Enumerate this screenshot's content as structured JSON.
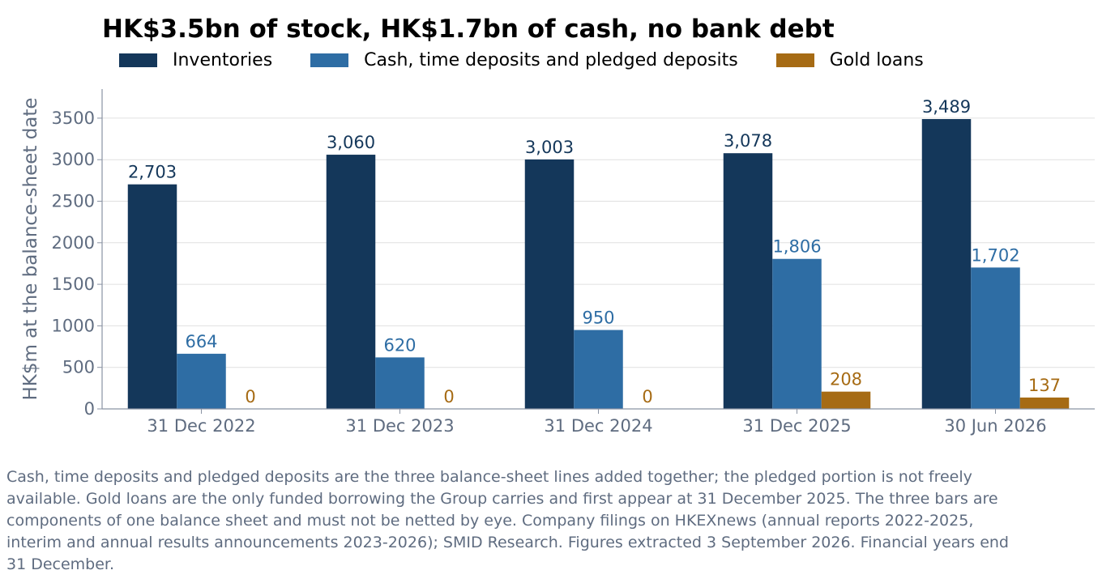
{
  "chart_data": {
    "type": "bar",
    "title": "HK$3.5bn of stock, HK$1.7bn of cash, no bank debt",
    "ylabel": "HK$m at the balance-sheet date",
    "xlabel": "",
    "ylim": [
      0,
      3850
    ],
    "yticks": [
      0,
      500,
      1000,
      1500,
      2000,
      2500,
      3000,
      3500
    ],
    "grid": "horizontal",
    "legend_position": "top",
    "categories": [
      "31 Dec 2022",
      "31 Dec 2023",
      "31 Dec 2024",
      "31 Dec 2025",
      "30 Jun 2026"
    ],
    "series": [
      {
        "name": "Inventories",
        "color": "#14375a",
        "values": [
          2703,
          3060,
          3003,
          3078,
          3489
        ],
        "labels": [
          "2,703",
          "3,060",
          "3,003",
          "3,078",
          "3,489"
        ]
      },
      {
        "name": "Cash, time deposits and pledged deposits",
        "color": "#2e6da4",
        "values": [
          664,
          620,
          950,
          1806,
          1702
        ],
        "labels": [
          "664",
          "620",
          "950",
          "1,806",
          "1,702"
        ]
      },
      {
        "name": "Gold loans",
        "color": "#a66b14",
        "values": [
          0,
          0,
          0,
          208,
          137
        ],
        "labels": [
          "0",
          "0",
          "0",
          "208",
          "137"
        ]
      }
    ]
  },
  "footnote": "Cash, time deposits and pledged deposits are the three balance-sheet lines added together; the pledged portion is not freely available. Gold loans are the only funded borrowing the Group carries and first appear at 31 December 2025. The three bars are components of one balance sheet and must not be netted by eye. Company filings on HKEXnews (annual reports 2022-2025, interim and annual results announcements 2023-2026); SMID Research. Figures extracted 3 September 2026. Financial years end 31 December.",
  "colors": {
    "axis": "#8a93a3",
    "tick_text": "#5f6c80",
    "grid": "#e0e0e0"
  }
}
